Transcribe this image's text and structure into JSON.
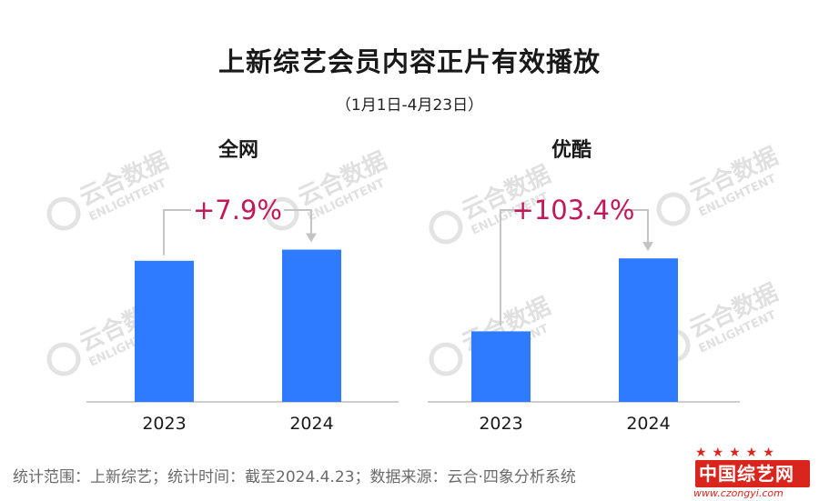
{
  "title": "上新综艺会员内容正片有效播放",
  "subtitle": "（1月1日-4月23日）",
  "footer": "统计范围：上新综艺；统计时间：截至2024.4.23；数据来源：云合·四象分析系统",
  "watermark": {
    "cn": "云合数据",
    "en": "ENLIGHTENT"
  },
  "logo": {
    "text": "中国综艺网",
    "url": "www.czongyi.com",
    "stars": "★★★★★"
  },
  "colors": {
    "bar": "#2f7bff",
    "annotation": "#c2185b",
    "axis": "#bdbdbd",
    "connector": "#c4c4c4"
  },
  "chart_data": [
    {
      "type": "bar",
      "title": "全网",
      "categories": [
        "2023",
        "2024"
      ],
      "values": [
        100,
        107.9
      ],
      "ylim": [
        0,
        125
      ],
      "annotation": "+7.9%",
      "grid": false
    },
    {
      "type": "bar",
      "title": "优酷",
      "categories": [
        "2023",
        "2024"
      ],
      "values": [
        100,
        203.4
      ],
      "ylim": [
        0,
        250
      ],
      "annotation": "+103.4%",
      "grid": false
    }
  ]
}
